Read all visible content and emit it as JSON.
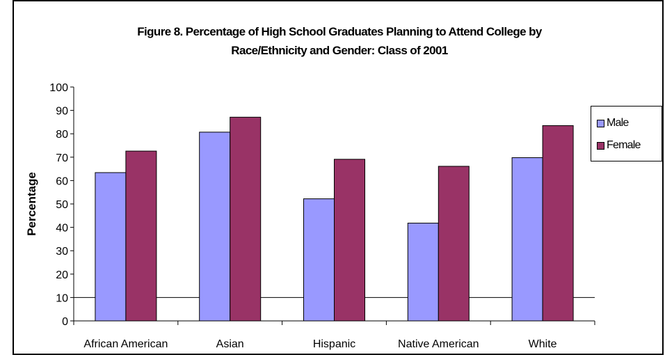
{
  "chart_data": {
    "type": "bar",
    "title_lines": [
      "Figure 8. Percentage of High School Graduates Planning to Attend College by",
      "Race/Ethnicity and Gender: Class of 2001"
    ],
    "xlabel": "",
    "ylabel": "Percentage",
    "ylim": [
      0,
      100
    ],
    "yticks": [
      "0",
      "10",
      "20",
      "30",
      "40",
      "50",
      "60",
      "70",
      "80",
      "90",
      "100"
    ],
    "categories": [
      "African American",
      "Asian",
      "Hispanic",
      "Native American",
      "White"
    ],
    "series": [
      {
        "name": "Male",
        "color": "#9999ff",
        "values": [
          63.4,
          80.7,
          52.2,
          41.8,
          69.8
        ]
      },
      {
        "name": "Female",
        "color": "#993366",
        "values": [
          72.6,
          87.1,
          69.1,
          66.1,
          83.5
        ]
      }
    ],
    "grid": "single horizontal line at 10",
    "legend_placement": "right"
  }
}
